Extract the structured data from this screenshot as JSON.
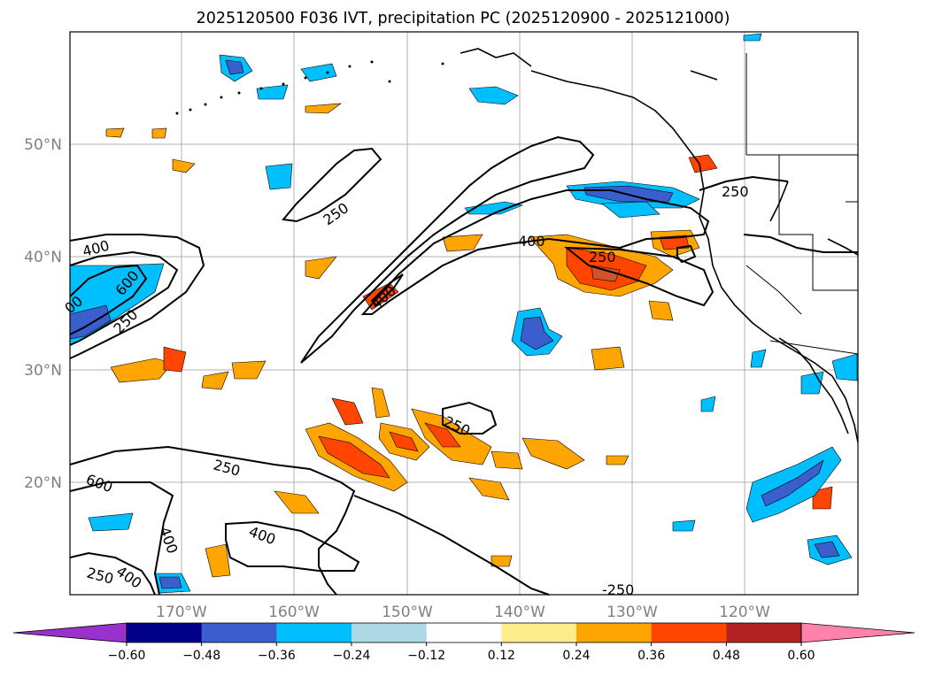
{
  "title": "2025120500 F036 IVT, precipitation PC (2025120900 - 2025121000)",
  "lat_labels": [
    "50°N",
    "40°N",
    "30°N",
    "20°N"
  ],
  "lon_labels": [
    "170°W",
    "160°W",
    "150°W",
    "140°W",
    "130°W",
    "120°W"
  ],
  "contour_labels": [
    "250",
    "250",
    "400",
    "400",
    "250",
    "400",
    "600",
    "400",
    "250",
    "250",
    "250",
    "600",
    "400",
    "400",
    "250",
    "400",
    "-250",
    "00"
  ],
  "colorbar": {
    "tick_labels": [
      "−0.60",
      "−0.48",
      "−0.36",
      "−0.24",
      "−0.12",
      "0.12",
      "0.24",
      "0.36",
      "0.48",
      "0.60"
    ],
    "colors": [
      "#9932cc",
      "#00008b",
      "#3a5fcd",
      "#00bfff",
      "#add8e6",
      "#ffffff",
      "#ffec8b",
      "#ffa500",
      "#ff4500",
      "#b22222",
      "#ff82ab"
    ]
  },
  "colors": {
    "land": "#ffffff",
    "grid": "#b0b0b0",
    "contour": "#000000",
    "neg_light": "#00bfff",
    "neg_dark": "#3a5fcd",
    "pos_light": "#ffa500",
    "pos_dark": "#ff4500",
    "pos_deep": "#d2522b"
  }
}
